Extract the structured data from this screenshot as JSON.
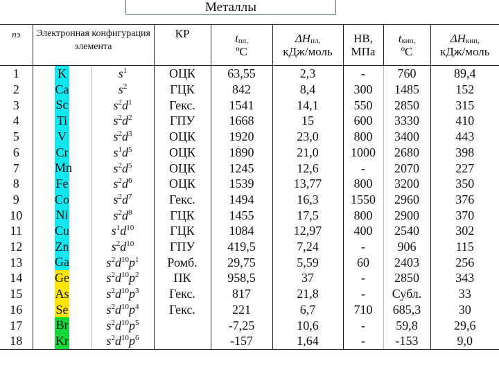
{
  "title": "Металлы",
  "header": {
    "n": "nэ",
    "config": "Электронная конфигурация элемента",
    "kr": "КР",
    "t_melt": {
      "symbol": "t",
      "sub": "пл,",
      "unit": "ºС"
    },
    "dh_melt": {
      "symbol": "ΔH",
      "sub": "пл,",
      "unit": "кДж/моль"
    },
    "hb": {
      "line1": "НВ,",
      "line2": "МПа"
    },
    "t_boil": {
      "symbol": "t",
      "sub": "кип,",
      "unit": "ºС"
    },
    "dh_boil": {
      "symbol": "ΔH",
      "sub": "кип,",
      "unit": "кДж/моль"
    }
  },
  "colors": {
    "cyan": "#14e6f0",
    "yellow": "#ffe40a",
    "green": "#14d83a"
  },
  "rows": [
    {
      "n": "1",
      "el": "K",
      "color": "cyan",
      "cfg": [
        [
          "s",
          "1"
        ]
      ],
      "kr": "ОЦК",
      "tm": "63,55",
      "dhm": "2,3",
      "hb": "-",
      "tb": "760",
      "dhb": "89,4"
    },
    {
      "n": "2",
      "el": "Ca",
      "color": "cyan",
      "cfg": [
        [
          "s",
          "2"
        ]
      ],
      "kr": "ГЦК",
      "tm": "842",
      "dhm": "8,4",
      "hb": "300",
      "tb": "1485",
      "dhb": "152"
    },
    {
      "n": "3",
      "el": "Sc",
      "color": "cyan",
      "cfg": [
        [
          "s",
          "2"
        ],
        [
          "d",
          "1"
        ]
      ],
      "kr": "Гекс.",
      "tm": "1541",
      "dhm": "14,1",
      "hb": "550",
      "tb": "2850",
      "dhb": "315"
    },
    {
      "n": "4",
      "el": "Ti",
      "color": "cyan",
      "cfg": [
        [
          "s",
          "2"
        ],
        [
          "d",
          "2"
        ]
      ],
      "kr": "ГПУ",
      "tm": "1668",
      "dhm": "15",
      "hb": "600",
      "tb": "3330",
      "dhb": "410"
    },
    {
      "n": "5",
      "el": "V",
      "color": "cyan",
      "cfg": [
        [
          "s",
          "2"
        ],
        [
          "d",
          "3"
        ]
      ],
      "kr": "ОЦК",
      "tm": "1920",
      "dhm": "23,0",
      "hb": "800",
      "tb": "3400",
      "dhb": "443"
    },
    {
      "n": "6",
      "el": "Cr",
      "color": "cyan",
      "cfg": [
        [
          "s",
          "1"
        ],
        [
          "d",
          "5"
        ]
      ],
      "kr": "ОЦК",
      "tm": "1890",
      "dhm": "21,0",
      "hb": "1000",
      "tb": "2680",
      "dhb": "398"
    },
    {
      "n": "7",
      "el": "Mn",
      "color": "cyan",
      "cfg": [
        [
          "s",
          "2"
        ],
        [
          "d",
          "5"
        ]
      ],
      "kr": "ОЦК",
      "tm": "1245",
      "dhm": "12,6",
      "hb": "-",
      "tb": "2070",
      "dhb": "227"
    },
    {
      "n": "8",
      "el": "Fe",
      "color": "cyan",
      "cfg": [
        [
          "s",
          "2"
        ],
        [
          "d",
          "6"
        ]
      ],
      "kr": "ОЦК",
      "tm": "1539",
      "dhm": "13,77",
      "hb": "800",
      "tb": "3200",
      "dhb": "350"
    },
    {
      "n": "9",
      "el": "Co",
      "color": "cyan",
      "cfg": [
        [
          "s",
          "2"
        ],
        [
          "d",
          "7"
        ]
      ],
      "kr": "Гекс.",
      "tm": "1494",
      "dhm": "16,3",
      "hb": "1550",
      "tb": "2960",
      "dhb": "376"
    },
    {
      "n": "10",
      "el": "Ni",
      "color": "cyan",
      "cfg": [
        [
          "s",
          "2"
        ],
        [
          "d",
          "8"
        ]
      ],
      "kr": "ГЦК",
      "tm": "1455",
      "dhm": "17,5",
      "hb": "800",
      "tb": "2900",
      "dhb": "370"
    },
    {
      "n": "11",
      "el": "Cu",
      "color": "cyan",
      "cfg": [
        [
          "s",
          "1"
        ],
        [
          "d",
          "10"
        ]
      ],
      "kr": "ГЦК",
      "tm": "1084",
      "dhm": "12,97",
      "hb": "400",
      "tb": "2540",
      "dhb": "302"
    },
    {
      "n": "12",
      "el": "Zn",
      "color": "cyan",
      "cfg": [
        [
          "s",
          "2"
        ],
        [
          "d",
          "10"
        ]
      ],
      "kr": "ГПУ",
      "tm": "419,5",
      "dhm": "7,24",
      "hb": "-",
      "tb": "906",
      "dhb": "115"
    },
    {
      "n": "13",
      "el": "Ga",
      "color": "cyan",
      "cfg": [
        [
          "s",
          "2"
        ],
        [
          "d",
          "10"
        ],
        [
          "p",
          "1"
        ]
      ],
      "kr": "Ромб.",
      "tm": "29,75",
      "dhm": "5,59",
      "hb": "60",
      "tb": "2403",
      "dhb": "256"
    },
    {
      "n": "14",
      "el": "Ge",
      "color": "yellow",
      "cfg": [
        [
          "s",
          "2"
        ],
        [
          "d",
          "10"
        ],
        [
          "p",
          "2"
        ]
      ],
      "kr": "ПК",
      "tm": "958,5",
      "dhm": "37",
      "hb": "-",
      "tb": "2850",
      "dhb": "343"
    },
    {
      "n": "15",
      "el": "As",
      "color": "yellow",
      "cfg": [
        [
          "s",
          "2"
        ],
        [
          "d",
          "10"
        ],
        [
          "p",
          "3"
        ]
      ],
      "kr": "Гекс.",
      "tm": "817",
      "dhm": "21,8",
      "hb": "-",
      "tb": "Субл.",
      "dhb": "33"
    },
    {
      "n": "16",
      "el": "Se",
      "color": "yellow",
      "cfg": [
        [
          "s",
          "2"
        ],
        [
          "d",
          "10"
        ],
        [
          "p",
          "4"
        ]
      ],
      "kr": "Гекс.",
      "tm": "221",
      "dhm": "6,7",
      "hb": "710",
      "tb": "685,3",
      "dhb": "30"
    },
    {
      "n": "17",
      "el": "Br",
      "color": "green",
      "cfg": [
        [
          "s",
          "2"
        ],
        [
          "d",
          "10"
        ],
        [
          "p",
          "5"
        ]
      ],
      "kr": "",
      "tm": "-7,25",
      "dhm": "10,6",
      "hb": "-",
      "tb": "59,8",
      "dhb": "29,6"
    },
    {
      "n": "18",
      "el": "Kr",
      "color": "green",
      "cfg": [
        [
          "s",
          "2"
        ],
        [
          "d",
          "10"
        ],
        [
          "p",
          "6"
        ]
      ],
      "kr": "",
      "tm": "-157",
      "dhm": "1,64",
      "hb": "-",
      "tb": "-153",
      "dhb": "9,0"
    }
  ]
}
